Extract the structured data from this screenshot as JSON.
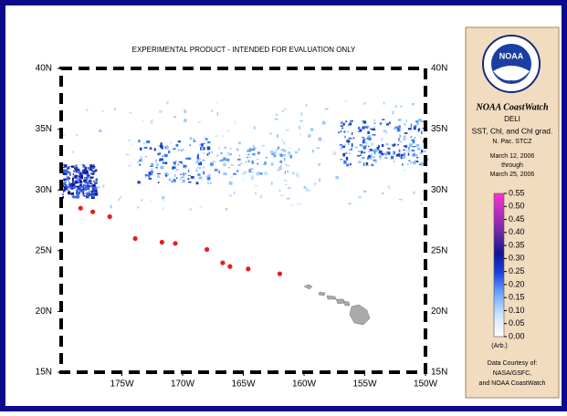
{
  "map": {
    "title": "EXPERIMENTAL PRODUCT - INTENDED FOR EVALUATION ONLY",
    "xlim": [
      180,
      150
    ],
    "ylim": [
      15,
      40
    ],
    "xticks": [
      {
        "value": 175,
        "label": "175W"
      },
      {
        "value": 170,
        "label": "170W"
      },
      {
        "value": 165,
        "label": "165W"
      },
      {
        "value": 160,
        "label": "160W"
      },
      {
        "value": 155,
        "label": "155W"
      },
      {
        "value": 150,
        "label": "150W"
      }
    ],
    "yticks": [
      {
        "value": 40,
        "label": "40N"
      },
      {
        "value": 35,
        "label": "35N"
      },
      {
        "value": 30,
        "label": "30N"
      },
      {
        "value": 25,
        "label": "25N"
      },
      {
        "value": 20,
        "label": "20N"
      },
      {
        "value": 15,
        "label": "15N"
      }
    ],
    "point_color": "#e02020",
    "points": [
      {
        "lon": 178.4,
        "lat": 28.5
      },
      {
        "lon": 177.4,
        "lat": 28.2
      },
      {
        "lon": 176.0,
        "lat": 27.8
      },
      {
        "lon": 173.9,
        "lat": 26.0
      },
      {
        "lon": 171.7,
        "lat": 25.7
      },
      {
        "lon": 170.6,
        "lat": 25.6
      },
      {
        "lon": 168.0,
        "lat": 25.1
      },
      {
        "lon": 166.7,
        "lat": 24.0
      },
      {
        "lon": 166.1,
        "lat": 23.7
      },
      {
        "lon": 164.6,
        "lat": 23.5
      },
      {
        "lon": 162.0,
        "lat": 23.1
      }
    ]
  },
  "legend": {
    "logo_text": "NOAA",
    "brand": "NOAA CoastWatch",
    "region": "DELI",
    "product": "SST, Chl, and Chl grad.",
    "area": "N. Pac. STCZ",
    "date_start": "March 12, 2006",
    "through": "through",
    "date_end": "March 25, 2006",
    "colorbar_lim": [
      0,
      0.55
    ],
    "colorbar_ticks": [
      0.55,
      {
        "value": 0.5,
        "label": "0.50"
      },
      0.45,
      {
        "value": 0.4,
        "label": "0.40"
      },
      0.35,
      {
        "value": 0.3,
        "label": "0.30"
      },
      0.25,
      {
        "value": 0.2,
        "label": "0.20"
      },
      0.15,
      {
        "value": 0.1,
        "label": "0.10"
      },
      0.05,
      {
        "value": 0,
        "label": "0.00"
      }
    ],
    "units": "(Arb.)",
    "credit": [
      "Data Courtesy of:",
      "NASA/GSFC,",
      "and NOAA CoastWatch"
    ]
  }
}
